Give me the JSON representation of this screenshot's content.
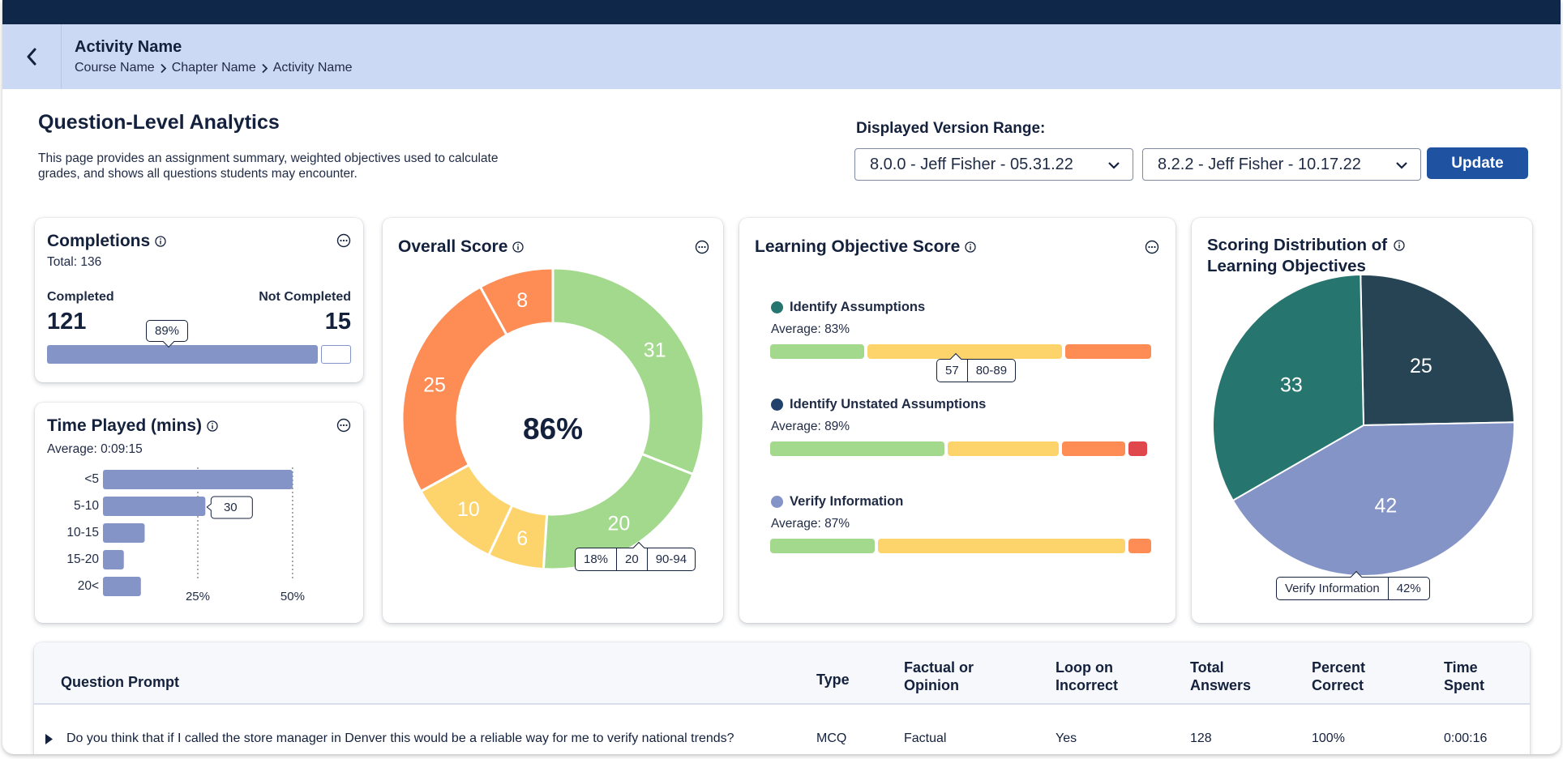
{
  "header": {
    "title": "Activity Name",
    "breadcrumb": [
      "Course Name",
      "Chapter Name",
      "Activity Name"
    ],
    "back_icon": "chevron-left-icon"
  },
  "page": {
    "title": "Question-Level Analytics",
    "description": "This page provides an assignment summary,  weighted objectives used to calculate grades, and shows all questions students may encounter."
  },
  "version_range": {
    "label": "Displayed Version Range:",
    "from_value": "8.0.0 - Jeff Fisher - 05.31.22",
    "to_value": "8.2.2 - Jeff Fisher - 10.17.22",
    "update_label": "Update"
  },
  "completions": {
    "title": "Completions",
    "total": "Total: 136",
    "completed_label": "Completed",
    "completed_value": "121",
    "not_completed_label": "Not Completed",
    "not_completed_value": "15",
    "percent_tag": "89%",
    "completed_fraction": 0.89
  },
  "time_played": {
    "title": "Time Played (mins)",
    "average": "Average: 0:09:15",
    "tooltip": "30",
    "ticks": [
      "25%",
      "50%"
    ],
    "chart_data": {
      "type": "bar",
      "orientation": "horizontal",
      "categories": [
        "<5",
        "5-10",
        "10-15",
        "15-20",
        "20<"
      ],
      "values": [
        50,
        27,
        11,
        5.5,
        10
      ],
      "xlim": [
        0,
        56
      ]
    }
  },
  "overall_score": {
    "title": "Overall Score",
    "center_label": "86%",
    "tooltip": [
      "18%",
      "20",
      "90-94"
    ],
    "chart_data": {
      "type": "pie",
      "donut": true,
      "slices": [
        {
          "value": 31,
          "color": "#a3d98c"
        },
        {
          "value": 20,
          "color": "#a3d98c"
        },
        {
          "value": 6,
          "color": "#fdd36b"
        },
        {
          "value": 10,
          "color": "#fdd36b"
        },
        {
          "value": 25,
          "color": "#fd8c55"
        },
        {
          "value": 8,
          "color": "#fd8c55"
        }
      ]
    }
  },
  "learning_objectives": {
    "title": "Learning Objective Score",
    "tooltip": [
      "57",
      "80-89"
    ],
    "items": [
      {
        "name": "Identify Assumptions",
        "average": "Average: 83%",
        "dot": "#27756f",
        "segments": [
          {
            "value": 0.25,
            "color": "#a3d98c"
          },
          {
            "value": 0.52,
            "color": "#fdd36b"
          },
          {
            "value": 0.23,
            "color": "#fd8c55"
          }
        ]
      },
      {
        "name": "Identify Unstated Assumptions",
        "average": "Average: 89%",
        "dot": "#22416b",
        "segments": [
          {
            "value": 0.47,
            "color": "#a3d98c"
          },
          {
            "value": 0.3,
            "color": "#fdd36b"
          },
          {
            "value": 0.17,
            "color": "#fd8c55"
          },
          {
            "value": 0.05,
            "color": "#e0474c"
          }
        ]
      },
      {
        "name": "Verify Information",
        "average": "Average: 87%",
        "dot": "#8594c7",
        "segments": [
          {
            "value": 0.28,
            "color": "#a3d98c"
          },
          {
            "value": 0.66,
            "color": "#fdd36b"
          },
          {
            "value": 0.06,
            "color": "#fd8c55"
          }
        ]
      }
    ]
  },
  "scoring_distribution": {
    "title_line1": "Scoring Distribution of",
    "title_line2": "Learning Objectives",
    "tooltip": [
      "Verify Information",
      "42%"
    ],
    "chart_data": {
      "type": "pie",
      "slices": [
        {
          "label": "Identify Unstated Assumptions",
          "value": 25,
          "color": "#264453"
        },
        {
          "label": "Verify Information",
          "value": 42,
          "color": "#8594c7"
        },
        {
          "label": "Identify Assumptions",
          "value": 33,
          "color": "#27756f"
        }
      ]
    }
  },
  "table": {
    "headers": {
      "prompt": "Question Prompt",
      "type": "Type",
      "factual_1": "Factual or",
      "factual_2": "Opinion",
      "loop_1": "Loop on",
      "loop_2": "Incorrect",
      "total_1": "Total",
      "total_2": "Answers",
      "pct_1": "Percent",
      "pct_2": "Correct",
      "time_1": "Time",
      "time_2": "Spent"
    },
    "rows": [
      {
        "prompt": "Do you think that if I called the store manager in Denver this would be a reliable way for me to verify national trends?",
        "type": "MCQ",
        "factual": "Factual",
        "loop": "Yes",
        "total": "128",
        "percent": "100%",
        "time": "0:00:16"
      }
    ]
  }
}
